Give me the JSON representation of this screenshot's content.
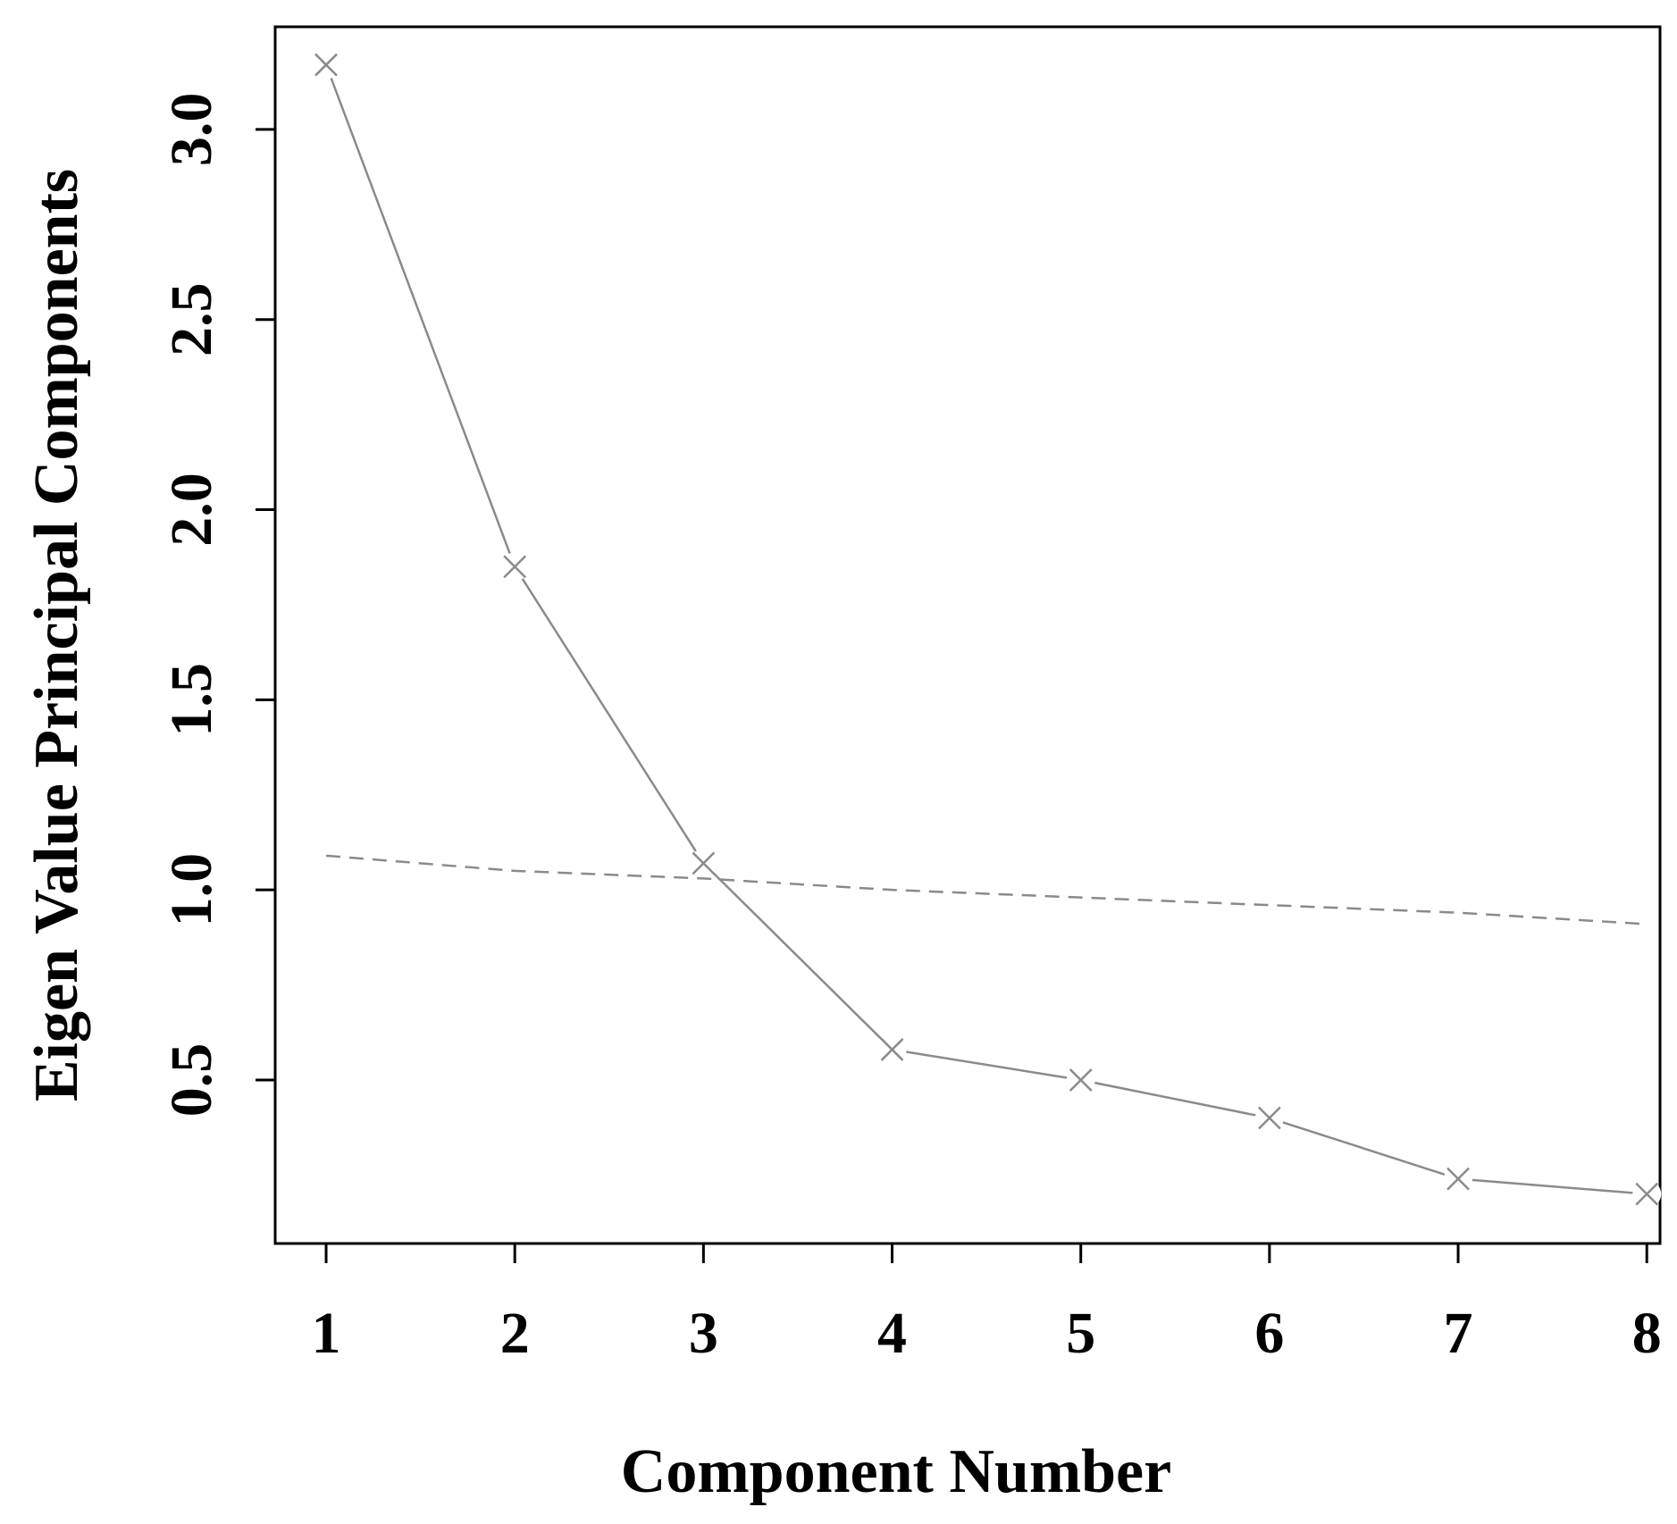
{
  "chart_data": {
    "type": "line",
    "title": "",
    "xlabel": "Component Number",
    "ylabel": "Eigen Value Principal Components",
    "x": [
      1,
      2,
      3,
      4,
      5,
      6,
      7,
      8
    ],
    "x_ticks": [
      "1",
      "2",
      "3",
      "4",
      "5",
      "6",
      "7",
      "8"
    ],
    "y_ticks": [
      "0.5",
      "1.0",
      "1.5",
      "2.0",
      "2.5",
      "3.0"
    ],
    "y_tick_values": [
      0.5,
      1.0,
      1.5,
      2.0,
      2.5,
      3.0
    ],
    "xlim": [
      0.73,
      8.07
    ],
    "ylim": [
      0.07,
      3.27
    ],
    "grid": false,
    "series": [
      {
        "style": "solid",
        "marker": "x",
        "color": "#8a8a8a",
        "values": [
          3.17,
          1.85,
          1.07,
          0.58,
          0.5,
          0.4,
          0.24,
          0.2
        ]
      },
      {
        "style": "dashed",
        "marker": "none",
        "color": "#8a8a8a",
        "values": [
          1.09,
          1.05,
          1.03,
          1.0,
          0.98,
          0.96,
          0.94,
          0.91
        ]
      }
    ]
  }
}
